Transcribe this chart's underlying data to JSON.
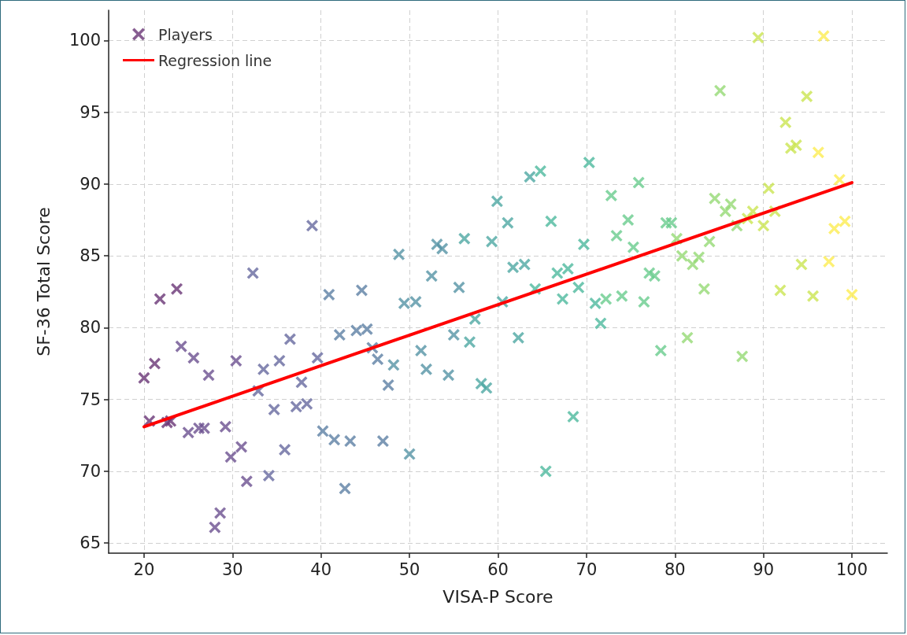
{
  "chart_data": {
    "type": "scatter",
    "xlabel": "VISA-P Score",
    "ylabel": "SF-36 Total Score",
    "xlim": [
      16,
      104
    ],
    "xticks": [
      20,
      30,
      40,
      50,
      60,
      70,
      80,
      90,
      100
    ],
    "ylim": [
      64.3,
      102.1
    ],
    "yticks": [
      65,
      70,
      75,
      80,
      85,
      90,
      95,
      100
    ],
    "grid": true,
    "legend": "top left",
    "marker": "cross",
    "series": [
      {
        "name": "Players",
        "color": "#693476",
        "x": [
          20.0,
          20.6,
          21.2,
          21.8,
          22.6,
          23.0,
          23.7,
          24.2,
          25.0,
          25.6,
          26.2,
          26.8,
          27.3,
          28.0,
          28.6,
          29.2,
          29.8,
          30.4,
          31.0,
          31.6,
          32.3,
          32.9,
          33.5,
          34.1,
          34.7,
          35.3,
          35.9,
          36.5,
          37.2,
          37.8,
          38.4,
          39.0,
          39.6,
          40.2,
          40.9,
          41.5,
          42.1,
          42.7,
          43.3,
          44.0,
          44.6,
          45.2,
          45.8,
          46.4,
          47.0,
          47.6,
          48.2,
          48.8,
          49.4,
          50.0,
          50.7,
          51.3,
          51.9,
          52.5,
          53.1,
          53.7,
          54.4,
          55.0,
          55.6,
          56.2,
          56.8,
          57.4,
          58.1,
          58.7,
          59.3,
          59.9,
          60.5,
          61.1,
          61.7,
          62.3,
          63.0,
          63.6,
          64.2,
          64.8,
          65.4,
          66.0,
          66.7,
          67.3,
          67.9,
          68.5,
          69.1,
          69.7,
          70.3,
          71.0,
          71.6,
          72.2,
          72.8,
          73.4,
          74.0,
          74.7,
          75.3,
          75.9,
          76.5,
          77.1,
          77.7,
          78.4,
          79.0,
          79.6,
          80.2,
          80.8,
          81.4,
          82.0,
          82.7,
          83.3,
          83.9,
          84.5,
          85.1,
          85.7,
          86.3,
          87.0,
          87.6,
          88.2,
          88.8,
          89.4,
          90.0,
          90.6,
          91.3,
          91.9,
          92.5,
          93.1,
          93.7,
          94.3,
          94.9,
          95.6,
          96.2,
          96.8,
          97.4,
          98.0,
          98.6,
          99.2,
          100.0
        ],
        "values": [
          76.5,
          73.5,
          77.5,
          82.0,
          73.4,
          73.5,
          82.7,
          78.7,
          72.7,
          77.9,
          73.0,
          73.0,
          76.7,
          66.1,
          67.1,
          73.1,
          71.0,
          77.7,
          71.7,
          69.3,
          83.8,
          75.6,
          77.1,
          69.7,
          74.3,
          77.7,
          71.5,
          79.2,
          74.5,
          76.2,
          74.7,
          87.1,
          77.9,
          72.8,
          82.3,
          72.2,
          79.5,
          68.8,
          72.1,
          79.8,
          82.6,
          79.9,
          78.6,
          77.8,
          72.1,
          76.0,
          77.4,
          85.1,
          81.7,
          71.2,
          81.8,
          78.4,
          77.1,
          83.6,
          85.8,
          85.5,
          76.7,
          79.5,
          82.8,
          86.2,
          79.0,
          80.6,
          76.1,
          75.8,
          86.0,
          88.8,
          81.8,
          87.3,
          84.2,
          79.3,
          84.4,
          90.5,
          82.7,
          90.9,
          70.0,
          87.4,
          83.8,
          82.0,
          84.1,
          73.8,
          82.8,
          85.8,
          91.5,
          81.7,
          80.3,
          82.0,
          89.2,
          86.4,
          82.2,
          87.5,
          85.6,
          90.1,
          81.8,
          83.8,
          83.6,
          78.4,
          87.3,
          87.3,
          86.2,
          85.0,
          79.3,
          84.4,
          84.9,
          82.7,
          86.0,
          89.0,
          96.5,
          88.1,
          88.6,
          87.1,
          78.0,
          87.6,
          88.1,
          100.2,
          87.1,
          89.7,
          88.1,
          82.6,
          94.3,
          92.5,
          92.7,
          84.4,
          96.1,
          82.2,
          92.2,
          100.3,
          84.6,
          86.9,
          90.3,
          87.4,
          82.3
        ],
        "colors": [
          "#693476",
          "#693476",
          "#693476",
          "#693476",
          "#693476",
          "#693476",
          "#693476",
          "#6c5090",
          "#6c5090",
          "#6c5090",
          "#6c5090",
          "#6c5090",
          "#6c5090",
          "#6c5090",
          "#6c5090",
          "#6c5090",
          "#6c5090",
          "#6c5090",
          "#6c5090",
          "#6c5090",
          "#67699f",
          "#67699f",
          "#67699f",
          "#67699f",
          "#67699f",
          "#67699f",
          "#67699f",
          "#67699f",
          "#67699f",
          "#67699f",
          "#67699f",
          "#67699f",
          "#67699f",
          "#5d7fa4",
          "#5d7fa4",
          "#5d7fa4",
          "#5d7fa4",
          "#5d7fa4",
          "#5d7fa4",
          "#5d7fa4",
          "#5d7fa4",
          "#5d7fa4",
          "#5d7fa4",
          "#5d7fa4",
          "#5d7fa4",
          "#5d7fa4",
          "#5593a5",
          "#5593a5",
          "#5593a5",
          "#5593a5",
          "#5593a5",
          "#5593a5",
          "#5593a5",
          "#5593a5",
          "#5593a5",
          "#5593a5",
          "#5593a5",
          "#5593a5",
          "#5593a5",
          "#4da7a3",
          "#4da7a3",
          "#4da7a3",
          "#4da7a3",
          "#4da7a3",
          "#4da7a3",
          "#4da7a3",
          "#4da7a3",
          "#4da7a3",
          "#4da7a3",
          "#4da7a3",
          "#4da7a3",
          "#4da7a3",
          "#4eb99d",
          "#4eb99d",
          "#4eb99d",
          "#4eb99d",
          "#4eb99d",
          "#4eb99d",
          "#4eb99d",
          "#4eb99d",
          "#4eb99d",
          "#4eb99d",
          "#4eb99d",
          "#4eb99d",
          "#4eb99d",
          "#69cc8d",
          "#69cc8d",
          "#69cc8d",
          "#69cc8d",
          "#69cc8d",
          "#69cc8d",
          "#69cc8d",
          "#69cc8d",
          "#69cc8d",
          "#69cc8d",
          "#69cc8d",
          "#69cc8d",
          "#69cc8d",
          "#95da74",
          "#95da74",
          "#95da74",
          "#95da74",
          "#95da74",
          "#95da74",
          "#95da74",
          "#95da74",
          "#95da74",
          "#95da74",
          "#95da74",
          "#95da74",
          "#95da74",
          "#cae551",
          "#cae551",
          "#cae551",
          "#cae551",
          "#cae551",
          "#cae551",
          "#cae551",
          "#cae551",
          "#cae551",
          "#cae551",
          "#cae551",
          "#cae551",
          "#cae551",
          "#fdec51",
          "#fdec51",
          "#fdec51",
          "#fdec51",
          "#fdec51",
          "#fdec51",
          "#fdec51"
        ]
      },
      {
        "name": "Regression line",
        "type": "line",
        "color": "#ff0000",
        "marker": "none",
        "line_style": "solid",
        "x": [
          20,
          100
        ],
        "values": [
          73.1,
          90.1
        ]
      }
    ]
  }
}
